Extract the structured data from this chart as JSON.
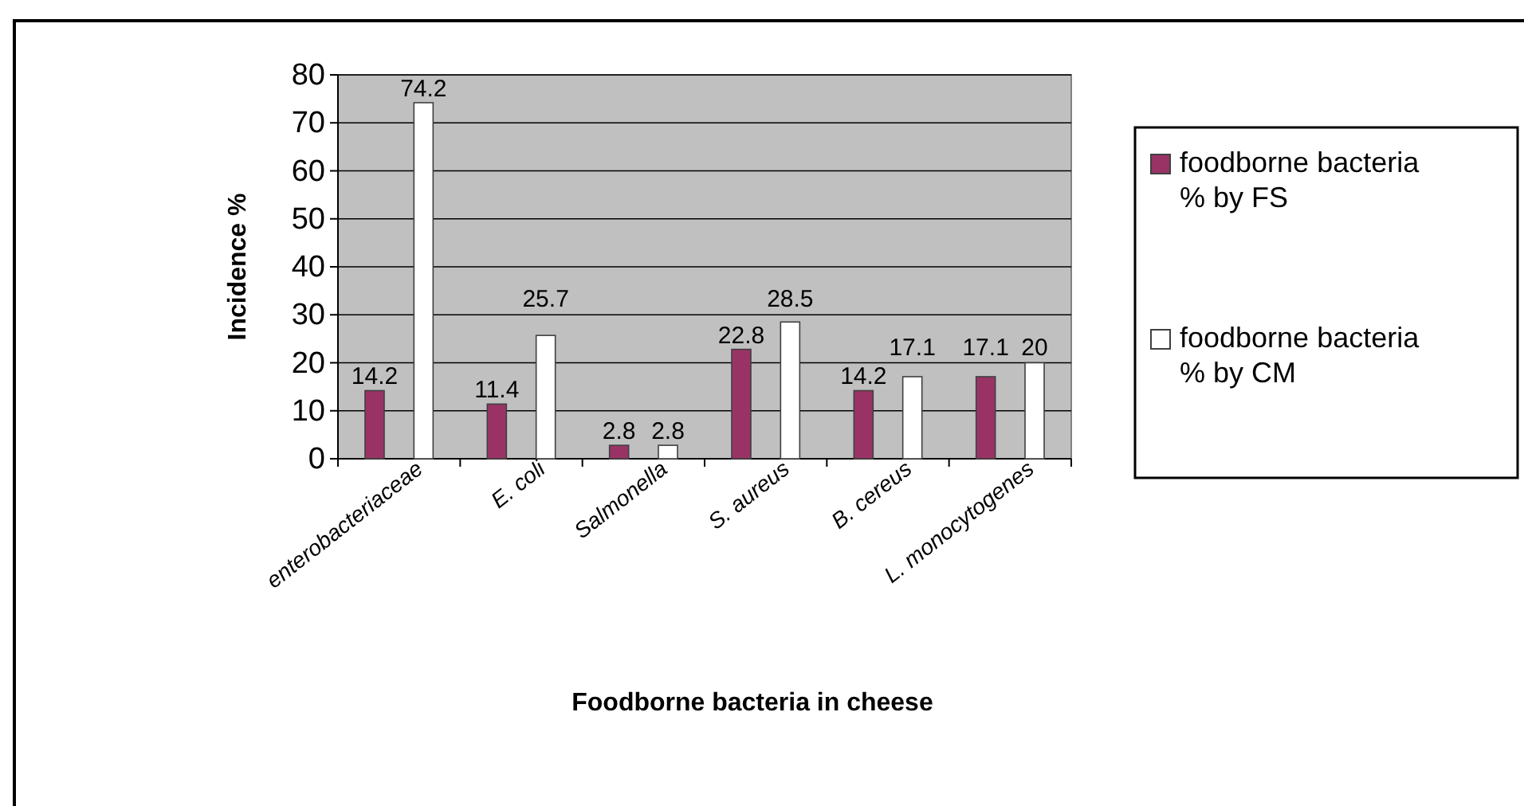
{
  "chart_data": {
    "type": "bar",
    "xlabel": "Foodborne bacteria in cheese",
    "ylabel": "Incidence %",
    "categories": [
      "enterobacteriaceae",
      "E. coli",
      "Salmonella",
      "S. aureus",
      "B. cereus",
      "L. monocytogenes"
    ],
    "series": [
      {
        "name": "foodborne bacteria % by FS",
        "color": "#993366",
        "values": [
          14.2,
          11.4,
          2.8,
          22.8,
          14.2,
          17.1
        ]
      },
      {
        "name": "foodborne bacteria % by CM",
        "color": "#ffffff",
        "values": [
          74.2,
          25.7,
          2.8,
          28.5,
          17.1,
          20
        ]
      }
    ],
    "ylim": [
      0,
      80
    ],
    "yticks": [
      0,
      10,
      20,
      30,
      40,
      50,
      60,
      70,
      80
    ],
    "grid": "y",
    "data_labels": true,
    "legend": "right"
  }
}
